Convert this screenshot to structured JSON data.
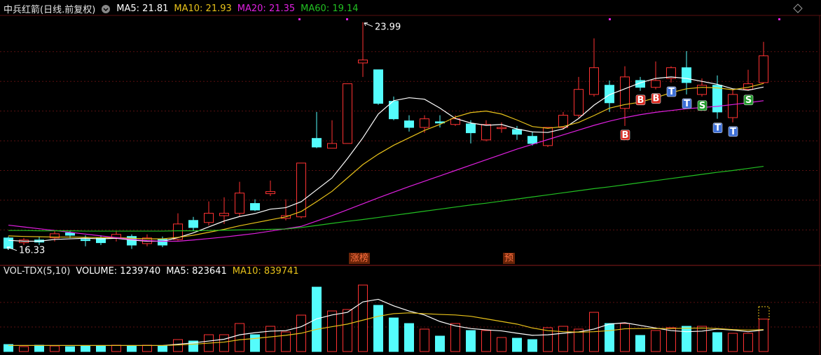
{
  "chart_data": [
    {
      "type": "candlestick",
      "title": "中兵红箭(日线.前复权)",
      "up_color": "#ff3232",
      "down_color": "#54fcfc",
      "open": [
        16.73,
        16.57,
        16.66,
        16.73,
        16.9,
        16.68,
        16.73,
        16.73,
        16.78,
        16.54,
        16.68,
        16.68,
        17.32,
        17.25,
        17.48,
        17.56,
        17.89,
        18.22,
        17.39,
        17.44,
        20.08,
        19.75,
        19.91,
        22.62,
        22.39,
        21.33,
        20.67,
        20.45,
        20.64,
        20.55,
        20.57,
        20.03,
        20.41,
        20.38,
        20.15,
        19.84,
        20.45,
        20.86,
        21.56,
        21.87,
        21.09,
        22.03,
        21.8,
        22.1,
        22.46,
        21.56,
        21.87,
        20.78,
        21.73,
        21.96
      ],
      "high": [
        16.78,
        16.73,
        16.78,
        16.97,
        16.97,
        16.82,
        16.82,
        16.97,
        16.85,
        16.85,
        16.78,
        17.56,
        17.44,
        17.96,
        18.1,
        18.62,
        18.03,
        18.66,
        18.03,
        19.25,
        20.97,
        20.69,
        21.92,
        23.99,
        22.39,
        21.49,
        20.86,
        20.86,
        20.86,
        20.86,
        20.69,
        20.69,
        20.62,
        20.5,
        20.31,
        20.45,
        20.97,
        22.15,
        23.45,
        22.03,
        22.51,
        22.15,
        22.67,
        22.51,
        23.02,
        22.1,
        22.2,
        21.73,
        22.39,
        23.33
      ],
      "low": [
        16.33,
        16.49,
        16.49,
        16.61,
        16.73,
        16.45,
        16.49,
        16.61,
        16.36,
        16.45,
        16.42,
        16.64,
        16.97,
        17.15,
        17.2,
        17.44,
        17.63,
        18.14,
        17.32,
        17.39,
        19.75,
        19.75,
        19.91,
        22.15,
        21.21,
        20.69,
        20.31,
        20.27,
        20.45,
        20.5,
        19.91,
        19.98,
        20.27,
        20.03,
        19.84,
        19.79,
        20.38,
        20.78,
        21.49,
        20.97,
        20.5,
        21.68,
        21.73,
        21.96,
        21.56,
        21.49,
        20.74,
        20.62,
        21.68,
        21.92
      ],
      "close": [
        16.38,
        16.66,
        16.59,
        16.87,
        16.82,
        16.64,
        16.57,
        16.85,
        16.49,
        16.73,
        16.49,
        17.2,
        17.08,
        17.56,
        17.56,
        18.24,
        17.67,
        18.29,
        17.48,
        19.25,
        19.79,
        19.91,
        21.92,
        22.72,
        21.26,
        20.74,
        20.45,
        20.74,
        20.6,
        20.74,
        20.27,
        20.55,
        20.45,
        20.22,
        19.91,
        20.45,
        20.86,
        21.73,
        22.46,
        21.28,
        22.15,
        21.8,
        22.03,
        22.46,
        21.96,
        21.87,
        20.97,
        21.56,
        21.92,
        22.86
      ],
      "series": [
        {
          "name": "MA5: 21.81",
          "color": "#ffffff",
          "values": [
            16.65,
            16.62,
            16.62,
            16.68,
            16.7,
            16.72,
            16.7,
            16.72,
            16.66,
            16.62,
            16.62,
            16.74,
            16.9,
            17.1,
            17.3,
            17.45,
            17.55,
            17.7,
            17.75,
            17.95,
            18.35,
            18.75,
            19.4,
            20.1,
            20.9,
            21.35,
            21.45,
            21.4,
            21.1,
            20.75,
            20.6,
            20.52,
            20.55,
            20.4,
            20.3,
            20.28,
            20.4,
            20.75,
            21.2,
            21.55,
            21.75,
            21.95,
            22.1,
            22.15,
            22.1,
            22.0,
            21.9,
            21.75,
            21.7,
            21.81
          ]
        },
        {
          "name": "MA10: 21.93",
          "color": "#e8c21a",
          "values": [
            16.8,
            16.78,
            16.77,
            16.76,
            16.76,
            16.75,
            16.74,
            16.74,
            16.72,
            16.7,
            16.7,
            16.75,
            16.82,
            16.92,
            17.02,
            17.14,
            17.24,
            17.34,
            17.44,
            17.62,
            17.95,
            18.3,
            18.75,
            19.2,
            19.55,
            19.85,
            20.1,
            20.35,
            20.55,
            20.8,
            20.95,
            21.0,
            20.9,
            20.7,
            20.48,
            20.42,
            20.48,
            20.62,
            20.85,
            21.1,
            21.22,
            21.3,
            21.45,
            21.62,
            21.75,
            21.8,
            21.78,
            21.72,
            21.8,
            21.93
          ]
        },
        {
          "name": "MA20: 21.35",
          "color": "#e020e0",
          "values": [
            17.16,
            17.1,
            17.04,
            16.98,
            16.92,
            16.86,
            16.8,
            16.74,
            16.68,
            16.64,
            16.62,
            16.62,
            16.66,
            16.71,
            16.76,
            16.82,
            16.88,
            16.96,
            17.04,
            17.12,
            17.3,
            17.48,
            17.68,
            17.88,
            18.08,
            18.27,
            18.46,
            18.64,
            18.82,
            19.0,
            19.18,
            19.36,
            19.54,
            19.72,
            19.88,
            20.04,
            20.2,
            20.36,
            20.52,
            20.66,
            20.78,
            20.88,
            20.96,
            21.02,
            21.08,
            21.12,
            21.16,
            21.22,
            21.28,
            21.35
          ]
        },
        {
          "name": "MA60: 19.14",
          "color": "#22c022",
          "values": [
            16.98,
            16.98,
            16.97,
            16.97,
            16.97,
            16.96,
            16.96,
            16.96,
            16.96,
            16.96,
            16.96,
            16.97,
            16.97,
            16.98,
            16.99,
            17.0,
            17.01,
            17.02,
            17.03,
            17.08,
            17.15,
            17.22,
            17.29,
            17.35,
            17.42,
            17.49,
            17.56,
            17.63,
            17.7,
            17.77,
            17.84,
            17.9,
            17.97,
            18.04,
            18.11,
            18.18,
            18.25,
            18.32,
            18.39,
            18.45,
            18.52,
            18.59,
            18.66,
            18.73,
            18.8,
            18.87,
            18.94,
            19.0,
            19.07,
            19.14
          ]
        }
      ],
      "max_label": 23.99,
      "min_label": 16.33,
      "signals": [
        null,
        null,
        null,
        null,
        null,
        null,
        null,
        null,
        null,
        null,
        null,
        null,
        null,
        null,
        null,
        null,
        null,
        null,
        null,
        null,
        null,
        null,
        null,
        null,
        null,
        null,
        null,
        null,
        null,
        null,
        null,
        null,
        null,
        null,
        null,
        null,
        null,
        null,
        null,
        null,
        "B",
        "B",
        "B",
        "T",
        "T",
        "S",
        "T",
        "T",
        "S",
        null
      ],
      "signal_colors": {
        "B": "#d9261c",
        "S": "#1f9a2a",
        "T": "#3d6fd6"
      },
      "events": [
        null,
        null,
        null,
        null,
        null,
        null,
        null,
        null,
        null,
        null,
        null,
        null,
        null,
        null,
        null,
        null,
        null,
        null,
        null,
        null,
        null,
        null,
        "涨榜",
        null,
        null,
        null,
        null,
        null,
        null,
        null,
        null,
        null,
        "预",
        null,
        null,
        null,
        null,
        null,
        null,
        null,
        null,
        null,
        null,
        null,
        null,
        null,
        null,
        null,
        null,
        null
      ],
      "ylim": [
        15.83,
        24.15
      ],
      "yticks": [
        17,
        18,
        19,
        20,
        21,
        22,
        23
      ],
      "grid": true
    },
    {
      "type": "volume",
      "title": "VOL-TDX(5,10)",
      "series": [
        {
          "name": "VOLUME: 1239740",
          "color": "#ffffff",
          "values": [
            268000,
            188000,
            241000,
            214000,
            188000,
            214000,
            214000,
            241000,
            214000,
            241000,
            214000,
            456000,
            402000,
            643000,
            643000,
            1072000,
            643000,
            965000,
            750000,
            1394000,
            2466000,
            1554000,
            1608000,
            2546000,
            1769000,
            1286000,
            1072000,
            858000,
            590000,
            1072000,
            804000,
            804000,
            536000,
            509000,
            456000,
            911000,
            965000,
            858000,
            1501000,
            1072000,
            1072000,
            616000,
            804000,
            911000,
            965000,
            965000,
            724000,
            697000,
            697000,
            1239740
          ]
        },
        {
          "name": "MA5: 823641",
          "color": "#ffffff",
          "values": [
            230000,
            230000,
            230000,
            230000,
            230000,
            230000,
            230000,
            230000,
            230000,
            230000,
            230000,
            280000,
            330000,
            400000,
            470000,
            640000,
            720000,
            780000,
            800000,
            950000,
            1250000,
            1400000,
            1500000,
            1900000,
            2000000,
            1750000,
            1550000,
            1400000,
            1150000,
            980000,
            880000,
            830000,
            790000,
            700000,
            620000,
            640000,
            700000,
            750000,
            860000,
            1050000,
            1100000,
            1000000,
            900000,
            800000,
            760000,
            780000,
            860000,
            820000,
            760000,
            823641
          ]
        },
        {
          "name": "MA10: 839741",
          "color": "#e8c21a",
          "values": [
            230000,
            230000,
            230000,
            230000,
            230000,
            230000,
            230000,
            230000,
            230000,
            230000,
            230000,
            250000,
            280000,
            320000,
            360000,
            450000,
            500000,
            560000,
            620000,
            700000,
            850000,
            950000,
            1050000,
            1200000,
            1350000,
            1450000,
            1480000,
            1450000,
            1420000,
            1400000,
            1350000,
            1250000,
            1150000,
            1050000,
            900000,
            800000,
            760000,
            740000,
            760000,
            800000,
            870000,
            880000,
            880000,
            880000,
            890000,
            900000,
            880000,
            840000,
            820000,
            839741
          ]
        }
      ],
      "ylim": [
        0,
        2870000
      ],
      "yticks": [
        940000,
        1880000
      ],
      "grid": true
    }
  ]
}
